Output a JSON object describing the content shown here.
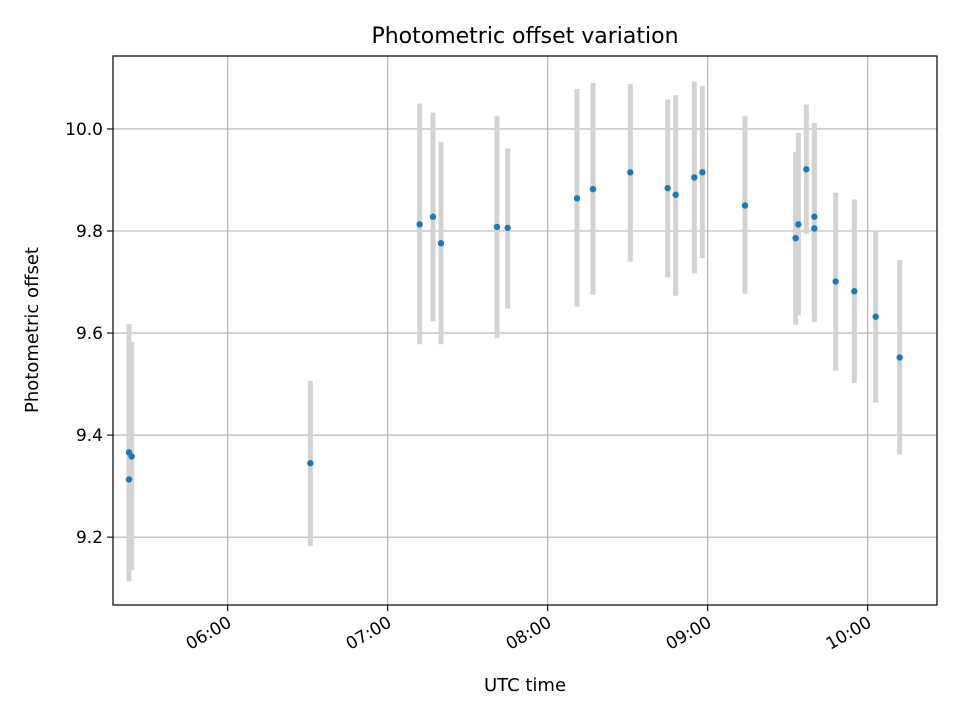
{
  "chart_data": {
    "type": "scatter",
    "title": "Photometric offset variation",
    "xlabel": "UTC time",
    "ylabel": "Photometric offset",
    "xlim": [
      "05:17",
      "10:26"
    ],
    "ylim": [
      9.067,
      10.143
    ],
    "grid": true,
    "x_ticks": [
      "06:00",
      "07:00",
      "08:00",
      "09:00",
      "10:00"
    ],
    "y_ticks": [
      "9.2",
      "9.4",
      "9.6",
      "9.8",
      "10.0"
    ],
    "series": [
      {
        "style": "points with vertical error bars",
        "point_color": "#1f77b4",
        "errorbar_color": "#d3d3d3",
        "points": [
          {
            "time": "05:23",
            "y": 9.313,
            "ymin": 9.113,
            "ymax": 9.618
          },
          {
            "time": "05:23",
            "y": 9.366,
            "ymin": 9.13,
            "ymax": 9.59
          },
          {
            "time": "05:24",
            "y": 9.358,
            "ymin": 9.135,
            "ymax": 9.583
          },
          {
            "time": "06:31",
            "y": 9.345,
            "ymin": 9.183,
            "ymax": 9.506
          },
          {
            "time": "07:12",
            "y": 9.813,
            "ymin": 9.578,
            "ymax": 10.05
          },
          {
            "time": "07:17",
            "y": 9.828,
            "ymin": 9.623,
            "ymax": 10.032
          },
          {
            "time": "07:20",
            "y": 9.776,
            "ymin": 9.578,
            "ymax": 9.975
          },
          {
            "time": "07:41",
            "y": 9.808,
            "ymin": 9.59,
            "ymax": 10.026
          },
          {
            "time": "07:45",
            "y": 9.806,
            "ymin": 9.648,
            "ymax": 9.962
          },
          {
            "time": "08:11",
            "y": 9.864,
            "ymin": 9.652,
            "ymax": 10.078
          },
          {
            "time": "08:17",
            "y": 9.882,
            "ymin": 9.675,
            "ymax": 10.09
          },
          {
            "time": "08:31",
            "y": 9.915,
            "ymin": 9.74,
            "ymax": 10.088
          },
          {
            "time": "08:45",
            "y": 9.884,
            "ymin": 9.709,
            "ymax": 10.058
          },
          {
            "time": "08:48",
            "y": 9.871,
            "ymin": 9.673,
            "ymax": 10.066
          },
          {
            "time": "08:55",
            "y": 9.905,
            "ymin": 9.717,
            "ymax": 10.093
          },
          {
            "time": "08:58",
            "y": 9.915,
            "ymin": 9.747,
            "ymax": 10.084
          },
          {
            "time": "09:14",
            "y": 9.85,
            "ymin": 9.677,
            "ymax": 10.025
          },
          {
            "time": "09:33",
            "y": 9.786,
            "ymin": 9.616,
            "ymax": 9.955
          },
          {
            "time": "09:34",
            "y": 9.813,
            "ymin": 9.635,
            "ymax": 9.992
          },
          {
            "time": "09:37",
            "y": 9.921,
            "ymin": 9.795,
            "ymax": 10.048
          },
          {
            "time": "09:40",
            "y": 9.828,
            "ymin": 9.644,
            "ymax": 10.012
          },
          {
            "time": "09:40",
            "y": 9.805,
            "ymin": 9.622,
            "ymax": 9.99
          },
          {
            "time": "09:48",
            "y": 9.701,
            "ymin": 9.526,
            "ymax": 9.875
          },
          {
            "time": "09:55",
            "y": 9.682,
            "ymin": 9.502,
            "ymax": 9.862
          },
          {
            "time": "10:03",
            "y": 9.632,
            "ymin": 9.464,
            "ymax": 9.801
          },
          {
            "time": "10:12",
            "y": 9.552,
            "ymin": 9.362,
            "ymax": 9.743
          }
        ]
      }
    ]
  }
}
